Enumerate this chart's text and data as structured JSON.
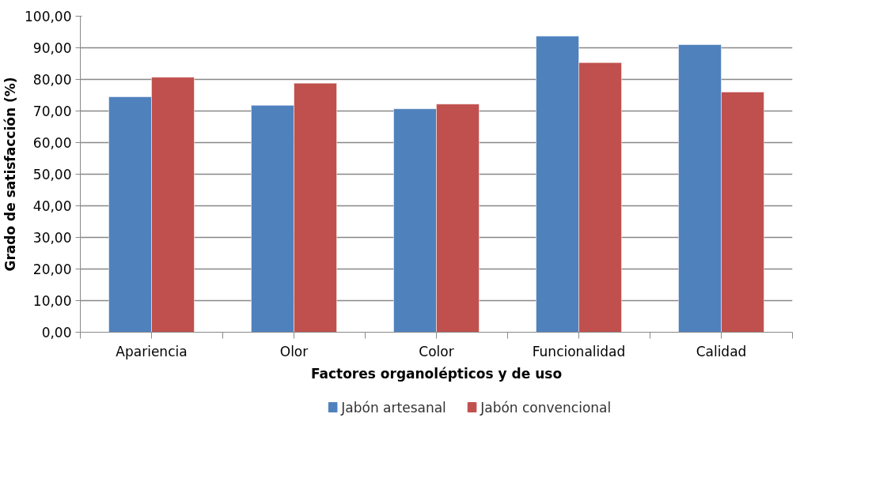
{
  "chart_data": {
    "type": "bar",
    "xlabel": "Factores organolépticos y de uso",
    "ylabel": "Grado de satisfacción (%)",
    "categories": [
      "Apariencia",
      "Olor",
      "Color",
      "Funcionalidad",
      "Calidad"
    ],
    "series": [
      {
        "name": "Jabón artesanal",
        "color": "#4f81bd",
        "values": [
          74.5,
          71.8,
          70.7,
          93.7,
          91.0
        ]
      },
      {
        "name": "Jabón convencional",
        "color": "#c0504d",
        "values": [
          80.7,
          78.8,
          72.2,
          85.3,
          76.0
        ]
      }
    ],
    "ylim": [
      0,
      100
    ],
    "yticks": [
      {
        "value": 0,
        "label": "0,00"
      },
      {
        "value": 10,
        "label": "10,00"
      },
      {
        "value": 20,
        "label": "20,00"
      },
      {
        "value": 30,
        "label": "30,00"
      },
      {
        "value": 40,
        "label": "40,00"
      },
      {
        "value": 50,
        "label": "50,00"
      },
      {
        "value": 60,
        "label": "60,00"
      },
      {
        "value": 70,
        "label": "70,00"
      },
      {
        "value": 80,
        "label": "80,00"
      },
      {
        "value": 90,
        "label": "90,00"
      },
      {
        "value": 100,
        "label": "100,00"
      }
    ],
    "grid": "y",
    "legend": "bottom"
  }
}
